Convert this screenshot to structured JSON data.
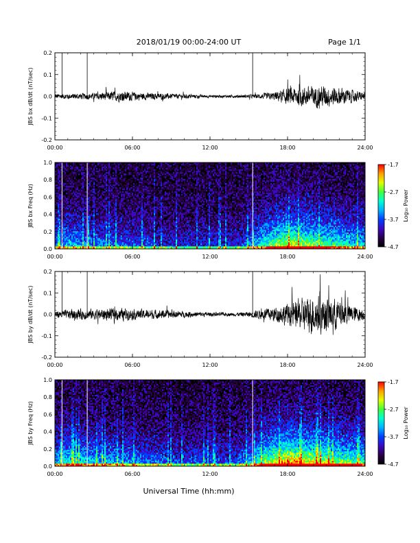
{
  "header": {
    "date_range": "2018/01/19  00:00-24:00 UT",
    "page": "Page 1/1"
  },
  "footer": {
    "xlabel": "Universal Time (hh:mm)"
  },
  "chart_data": [
    {
      "type": "line",
      "ylabel": "JBS bx dB/dt (nT/sec)",
      "xlim": [
        0,
        24
      ],
      "ylim": [
        -0.2,
        0.2
      ],
      "x_ticks": [
        "00:00",
        "06:00",
        "12:00",
        "18:00",
        "24:00"
      ],
      "y_ticks": [
        "-0.2",
        "-0.1",
        "0.0",
        "0.1",
        "0.2"
      ],
      "grid": false,
      "spikes_hours": [
        0.55,
        2.5,
        15.3
      ],
      "envelope": {
        "hours": [
          0,
          1,
          2,
          3,
          4,
          5,
          6,
          7,
          8,
          9,
          10,
          11,
          12,
          13,
          14,
          15,
          16,
          17,
          18,
          19,
          20,
          21,
          22,
          23,
          24
        ],
        "amplitude": [
          0.015,
          0.015,
          0.018,
          0.018,
          0.025,
          0.03,
          0.025,
          0.02,
          0.018,
          0.015,
          0.012,
          0.01,
          0.008,
          0.008,
          0.008,
          0.01,
          0.015,
          0.025,
          0.045,
          0.055,
          0.06,
          0.06,
          0.05,
          0.035,
          0.02
        ]
      }
    },
    {
      "type": "heatmap",
      "ylabel": "JBS bx Freq (Hz)",
      "colorbar_label": "Log₁₀ Power",
      "colorbar_ticks": [
        "-1.7",
        "-2.7",
        "-3.7",
        "-4.7"
      ],
      "clim": [
        -4.7,
        -1.7
      ],
      "xlim": [
        0,
        24
      ],
      "ylim": [
        0,
        1.0
      ],
      "x_ticks": [
        "00:00",
        "06:00",
        "12:00",
        "18:00",
        "24:00"
      ],
      "y_ticks": [
        "0.0",
        "0.2",
        "0.4",
        "0.6",
        "0.8",
        "1.0"
      ],
      "gap_lines_hours": [
        0.55,
        2.5,
        15.3
      ],
      "colors": [
        "#000000",
        "#2a004a",
        "#3a0ac0",
        "#0040ff",
        "#00b0ff",
        "#00ffd0",
        "#40ff40",
        "#e0ff00",
        "#ffa000",
        "#ff0000"
      ],
      "activity_by_hour": {
        "hours": [
          0,
          1,
          2,
          3,
          4,
          5,
          6,
          7,
          8,
          9,
          10,
          11,
          12,
          13,
          14,
          15,
          16,
          17,
          18,
          19,
          20,
          21,
          22,
          23,
          24
        ],
        "level": [
          0.3,
          0.4,
          0.35,
          0.3,
          0.3,
          0.3,
          0.25,
          0.25,
          0.2,
          0.2,
          0.2,
          0.2,
          0.2,
          0.2,
          0.2,
          0.3,
          0.45,
          0.6,
          0.7,
          0.65,
          0.6,
          0.55,
          0.5,
          0.45,
          0.4
        ]
      }
    },
    {
      "type": "line",
      "ylabel": "JBS by dB/dt (nT/sec)",
      "xlim": [
        0,
        24
      ],
      "ylim": [
        -0.2,
        0.2
      ],
      "x_ticks": [
        "00:00",
        "06:00",
        "12:00",
        "18:00",
        "24:00"
      ],
      "y_ticks": [
        "-0.2",
        "-0.1",
        "0.0",
        "0.1",
        "0.2"
      ],
      "grid": false,
      "spikes_hours": [
        0.55,
        2.5,
        15.3
      ],
      "envelope": {
        "hours": [
          0,
          1,
          2,
          3,
          4,
          5,
          6,
          7,
          8,
          9,
          10,
          11,
          12,
          13,
          14,
          15,
          16,
          17,
          18,
          19,
          20,
          21,
          22,
          23,
          24
        ],
        "amplitude": [
          0.02,
          0.025,
          0.03,
          0.03,
          0.035,
          0.035,
          0.03,
          0.028,
          0.025,
          0.022,
          0.018,
          0.015,
          0.012,
          0.01,
          0.01,
          0.015,
          0.03,
          0.045,
          0.06,
          0.09,
          0.11,
          0.1,
          0.08,
          0.05,
          0.03
        ]
      }
    },
    {
      "type": "heatmap",
      "ylabel": "JBS by Freq (Hz)",
      "colorbar_label": "Log₁₀ Power",
      "colorbar_ticks": [
        "-1.7",
        "-2.7",
        "-3.7",
        "-4.7"
      ],
      "clim": [
        -4.7,
        -1.7
      ],
      "xlim": [
        0,
        24
      ],
      "ylim": [
        0,
        1.0
      ],
      "x_ticks": [
        "00:00",
        "06:00",
        "12:00",
        "18:00",
        "24:00"
      ],
      "y_ticks": [
        "0.0",
        "0.2",
        "0.4",
        "0.6",
        "0.8",
        "1.0"
      ],
      "gap_lines_hours": [
        0.55,
        2.5,
        15.3
      ],
      "colors": [
        "#000000",
        "#2a004a",
        "#3a0ac0",
        "#0040ff",
        "#00b0ff",
        "#00ffd0",
        "#40ff40",
        "#e0ff00",
        "#ffa000",
        "#ff0000"
      ],
      "activity_by_hour": {
        "hours": [
          0,
          1,
          2,
          3,
          4,
          5,
          6,
          7,
          8,
          9,
          10,
          11,
          12,
          13,
          14,
          15,
          16,
          17,
          18,
          19,
          20,
          21,
          22,
          23,
          24
        ],
        "level": [
          0.4,
          0.5,
          0.45,
          0.4,
          0.4,
          0.35,
          0.35,
          0.3,
          0.3,
          0.25,
          0.25,
          0.25,
          0.25,
          0.25,
          0.25,
          0.35,
          0.55,
          0.7,
          0.8,
          0.75,
          0.7,
          0.65,
          0.6,
          0.55,
          0.5
        ]
      }
    }
  ]
}
